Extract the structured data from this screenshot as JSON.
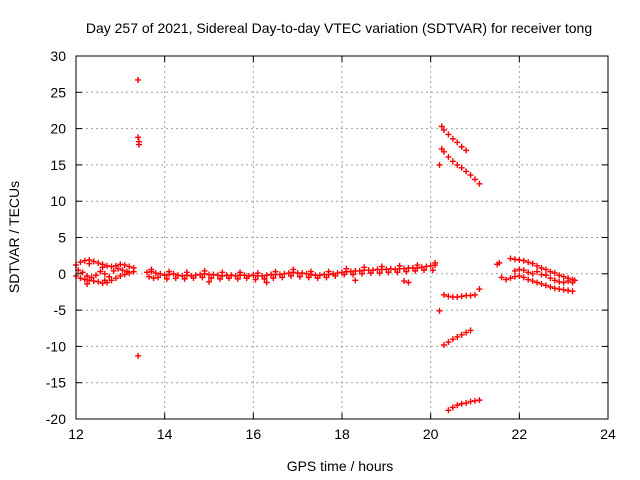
{
  "chart_data": {
    "type": "scatter",
    "title": "Day 257 of 2021, Sidereal Day-to-day VTEC variation (SDTVAR) for receiver tong",
    "xlabel": "GPS time / hours",
    "ylabel": "SDTVAR / TECUs",
    "xlim": [
      12,
      24
    ],
    "ylim": [
      -20,
      30
    ],
    "x_ticks": [
      "12",
      "14",
      "16",
      "18",
      "20",
      "22",
      "24"
    ],
    "y_ticks": [
      "-20",
      "-15",
      "-10",
      "-5",
      "0",
      "5",
      "10",
      "15",
      "20",
      "25",
      "30"
    ],
    "grid": true,
    "marker": "+",
    "color": "#ff0000",
    "series": [
      {
        "name": "SDTVAR",
        "points": [
          [
            13.4,
            26.7
          ],
          [
            13.4,
            18.8
          ],
          [
            13.42,
            18.2
          ],
          [
            13.42,
            17.8
          ],
          [
            13.4,
            -11.3
          ],
          [
            20.2,
            -5.1
          ],
          [
            20.2,
            15.0
          ],
          [
            12.0,
            1.2
          ],
          [
            12.1,
            1.6
          ],
          [
            12.2,
            1.8
          ],
          [
            12.3,
            1.9
          ],
          [
            12.4,
            1.7
          ],
          [
            12.5,
            1.5
          ],
          [
            12.6,
            1.3
          ],
          [
            12.7,
            1.1
          ],
          [
            12.8,
            1.0
          ],
          [
            12.9,
            1.1
          ],
          [
            13.0,
            1.3
          ],
          [
            13.1,
            1.2
          ],
          [
            13.2,
            1.0
          ],
          [
            13.3,
            0.8
          ],
          [
            12.0,
            -0.3
          ],
          [
            12.1,
            -0.6
          ],
          [
            12.2,
            -0.8
          ],
          [
            12.3,
            -0.9
          ],
          [
            12.4,
            -1.0
          ],
          [
            12.5,
            -1.1
          ],
          [
            12.6,
            -1.3
          ],
          [
            12.7,
            -1.2
          ],
          [
            12.8,
            -0.9
          ],
          [
            12.9,
            -0.6
          ],
          [
            13.0,
            -0.3
          ],
          [
            13.1,
            -0.1
          ],
          [
            13.2,
            0.1
          ],
          [
            13.3,
            0.3
          ],
          [
            12.05,
            0.5
          ],
          [
            12.15,
            0.2
          ],
          [
            12.25,
            -0.3
          ],
          [
            12.35,
            -0.5
          ],
          [
            12.45,
            -0.2
          ],
          [
            12.55,
            0.3
          ],
          [
            12.65,
            0.0
          ],
          [
            12.75,
            -0.4
          ],
          [
            12.85,
            0.4
          ],
          [
            12.95,
            0.7
          ],
          [
            13.05,
            0.5
          ],
          [
            13.15,
            0.3
          ],
          [
            12.6,
            0.9
          ],
          [
            12.65,
            -0.9
          ],
          [
            12.3,
            1.4
          ],
          [
            12.25,
            -1.4
          ],
          [
            13.6,
            0.2
          ],
          [
            13.7,
            0.3
          ],
          [
            13.8,
            0.1
          ],
          [
            13.9,
            0.0
          ],
          [
            14.0,
            -0.2
          ],
          [
            14.1,
            -0.1
          ],
          [
            14.2,
            0.0
          ],
          [
            14.3,
            -0.2
          ],
          [
            14.4,
            -0.3
          ],
          [
            14.5,
            -0.2
          ],
          [
            14.6,
            -0.3
          ],
          [
            14.7,
            -0.2
          ],
          [
            14.8,
            -0.1
          ],
          [
            14.9,
            0.0
          ],
          [
            15.0,
            -0.1
          ],
          [
            15.1,
            -0.1
          ],
          [
            15.2,
            -0.2
          ],
          [
            15.3,
            -0.3
          ],
          [
            15.4,
            -0.2
          ],
          [
            15.5,
            -0.2
          ],
          [
            15.6,
            -0.3
          ],
          [
            15.7,
            -0.2
          ],
          [
            15.8,
            -0.2
          ],
          [
            15.9,
            -0.3
          ],
          [
            16.0,
            -0.2
          ],
          [
            16.1,
            -0.3
          ],
          [
            16.2,
            -0.3
          ],
          [
            16.3,
            -0.2
          ],
          [
            16.4,
            -0.1
          ],
          [
            16.5,
            -0.1
          ],
          [
            16.6,
            -0.1
          ],
          [
            16.7,
            -0.0
          ],
          [
            16.8,
            0.1
          ],
          [
            16.9,
            0.2
          ],
          [
            17.0,
            0.1
          ],
          [
            17.1,
            0.1
          ],
          [
            17.2,
            0.0
          ],
          [
            17.3,
            -0.1
          ],
          [
            17.4,
            -0.2
          ],
          [
            17.5,
            -0.2
          ],
          [
            17.6,
            -0.1
          ],
          [
            17.7,
            -0.1
          ],
          [
            17.8,
            0.0
          ],
          [
            17.9,
            0.1
          ],
          [
            18.0,
            0.2
          ],
          [
            18.1,
            0.3
          ],
          [
            18.2,
            0.3
          ],
          [
            18.3,
            0.4
          ],
          [
            18.4,
            0.4
          ],
          [
            18.5,
            0.5
          ],
          [
            18.6,
            0.5
          ],
          [
            18.7,
            0.5
          ],
          [
            18.8,
            0.6
          ],
          [
            18.9,
            0.6
          ],
          [
            19.0,
            0.6
          ],
          [
            19.1,
            0.7
          ],
          [
            19.2,
            0.6
          ],
          [
            19.3,
            0.7
          ],
          [
            19.4,
            0.7
          ],
          [
            19.5,
            0.8
          ],
          [
            19.6,
            0.8
          ],
          [
            19.7,
            0.8
          ],
          [
            19.8,
            0.9
          ],
          [
            19.9,
            1.0
          ],
          [
            20.0,
            1.1
          ],
          [
            20.1,
            1.2
          ],
          [
            13.65,
            -0.4
          ],
          [
            13.75,
            -0.6
          ],
          [
            13.85,
            -0.5
          ],
          [
            14.05,
            -0.7
          ],
          [
            14.25,
            -0.6
          ],
          [
            14.45,
            -0.7
          ],
          [
            14.65,
            -0.6
          ],
          [
            14.85,
            -0.5
          ],
          [
            15.05,
            -0.6
          ],
          [
            15.25,
            -0.7
          ],
          [
            15.45,
            -0.6
          ],
          [
            15.65,
            -0.7
          ],
          [
            15.85,
            -0.6
          ],
          [
            16.05,
            -0.8
          ],
          [
            16.25,
            -0.7
          ],
          [
            16.45,
            -0.6
          ],
          [
            16.65,
            -0.5
          ],
          [
            16.85,
            -0.3
          ],
          [
            17.05,
            -0.4
          ],
          [
            17.25,
            -0.5
          ],
          [
            17.45,
            -0.6
          ],
          [
            17.65,
            -0.5
          ],
          [
            17.85,
            -0.3
          ],
          [
            18.05,
            -0.1
          ],
          [
            18.25,
            -0.1
          ],
          [
            18.45,
            0.0
          ],
          [
            18.65,
            0.1
          ],
          [
            18.85,
            0.1
          ],
          [
            19.05,
            0.2
          ],
          [
            19.25,
            0.2
          ],
          [
            19.45,
            0.3
          ],
          [
            19.65,
            0.4
          ],
          [
            19.85,
            0.5
          ],
          [
            20.05,
            0.5
          ],
          [
            13.7,
            0.6
          ],
          [
            14.1,
            0.3
          ],
          [
            14.5,
            0.2
          ],
          [
            14.9,
            0.4
          ],
          [
            15.3,
            0.2
          ],
          [
            15.7,
            0.2
          ],
          [
            16.1,
            0.1
          ],
          [
            16.5,
            0.3
          ],
          [
            16.9,
            0.6
          ],
          [
            17.3,
            0.3
          ],
          [
            17.7,
            0.3
          ],
          [
            18.1,
            0.7
          ],
          [
            18.5,
            0.9
          ],
          [
            18.9,
            1.0
          ],
          [
            19.3,
            1.1
          ],
          [
            19.7,
            1.2
          ],
          [
            20.1,
            1.5
          ],
          [
            15.0,
            -1.1
          ],
          [
            16.3,
            -1.2
          ],
          [
            18.3,
            -0.9
          ],
          [
            19.4,
            -1.0
          ],
          [
            19.5,
            -1.2
          ],
          [
            20.25,
            20.3
          ],
          [
            20.3,
            19.8
          ],
          [
            20.4,
            19.2
          ],
          [
            20.5,
            18.6
          ],
          [
            20.6,
            18.1
          ],
          [
            20.7,
            17.5
          ],
          [
            20.8,
            17.0
          ],
          [
            20.25,
            17.2
          ],
          [
            20.3,
            16.8
          ],
          [
            20.4,
            16.1
          ],
          [
            20.5,
            15.5
          ],
          [
            20.6,
            15.0
          ],
          [
            20.7,
            14.6
          ],
          [
            20.8,
            14.1
          ],
          [
            20.9,
            13.6
          ],
          [
            21.0,
            13.0
          ],
          [
            21.1,
            12.4
          ],
          [
            20.3,
            -2.9
          ],
          [
            20.4,
            -3.1
          ],
          [
            20.5,
            -3.2
          ],
          [
            20.6,
            -3.2
          ],
          [
            20.7,
            -3.1
          ],
          [
            20.8,
            -3.0
          ],
          [
            20.9,
            -3.0
          ],
          [
            21.0,
            -2.9
          ],
          [
            21.1,
            -2.1
          ],
          [
            20.3,
            -9.8
          ],
          [
            20.4,
            -9.4
          ],
          [
            20.5,
            -9.0
          ],
          [
            20.6,
            -8.7
          ],
          [
            20.7,
            -8.4
          ],
          [
            20.8,
            -8.1
          ],
          [
            20.9,
            -7.8
          ],
          [
            20.4,
            -18.8
          ],
          [
            20.5,
            -18.4
          ],
          [
            20.6,
            -18.1
          ],
          [
            20.7,
            -17.9
          ],
          [
            20.8,
            -17.8
          ],
          [
            20.9,
            -17.6
          ],
          [
            21.0,
            -17.5
          ],
          [
            21.1,
            -17.4
          ],
          [
            21.5,
            1.3
          ],
          [
            21.55,
            1.5
          ],
          [
            21.6,
            -0.5
          ],
          [
            21.7,
            -0.8
          ],
          [
            21.8,
            2.1
          ],
          [
            21.9,
            2.0
          ],
          [
            22.0,
            1.9
          ],
          [
            22.1,
            1.8
          ],
          [
            22.2,
            1.6
          ],
          [
            22.3,
            1.4
          ],
          [
            22.4,
            1.1
          ],
          [
            22.5,
            0.8
          ],
          [
            22.6,
            0.6
          ],
          [
            22.7,
            0.3
          ],
          [
            22.8,
            0.1
          ],
          [
            22.9,
            -0.2
          ],
          [
            23.0,
            -0.4
          ],
          [
            23.1,
            -0.6
          ],
          [
            23.2,
            -0.8
          ],
          [
            21.8,
            -0.6
          ],
          [
            21.9,
            -0.4
          ],
          [
            22.0,
            -0.3
          ],
          [
            22.1,
            -0.5
          ],
          [
            22.2,
            -0.8
          ],
          [
            22.3,
            -1.0
          ],
          [
            22.4,
            -1.2
          ],
          [
            22.5,
            -1.4
          ],
          [
            22.6,
            -1.6
          ],
          [
            22.7,
            -1.8
          ],
          [
            22.8,
            -2.0
          ],
          [
            22.9,
            -2.1
          ],
          [
            23.0,
            -2.2
          ],
          [
            23.1,
            -2.3
          ],
          [
            23.2,
            -2.4
          ],
          [
            21.9,
            0.4
          ],
          [
            22.0,
            0.6
          ],
          [
            22.1,
            0.5
          ],
          [
            22.2,
            0.2
          ],
          [
            22.3,
            0.0
          ],
          [
            22.4,
            0.3
          ],
          [
            22.5,
            -0.1
          ],
          [
            22.6,
            -0.2
          ],
          [
            22.7,
            -0.6
          ],
          [
            22.8,
            -0.9
          ],
          [
            22.9,
            -1.1
          ],
          [
            23.0,
            -1.2
          ],
          [
            23.1,
            -1.0
          ],
          [
            23.2,
            -1.2
          ],
          [
            23.25,
            -0.9
          ]
        ]
      }
    ]
  }
}
